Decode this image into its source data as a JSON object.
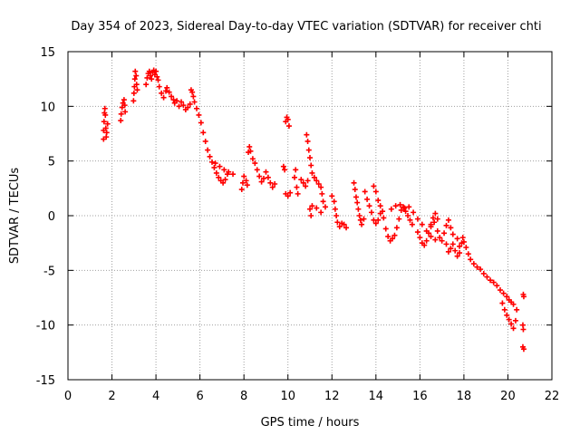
{
  "chart_data": {
    "type": "scatter",
    "title": "Day 354 of 2023, Sidereal Day-to-day VTEC variation (SDTVAR) for receiver chti",
    "xlabel": "GPS time / hours",
    "ylabel": "SDTVAR / TECUs",
    "xlim": [
      0,
      22
    ],
    "ylim": [
      -15,
      15
    ],
    "xticks": [
      0,
      2,
      4,
      6,
      8,
      10,
      12,
      14,
      16,
      18,
      20,
      22
    ],
    "yticks": [
      -15,
      -10,
      -5,
      0,
      5,
      10,
      15
    ],
    "grid": true,
    "marker": "+",
    "color": "#ff0000",
    "series": [
      {
        "name": "SDTVAR",
        "points": [
          [
            1.62,
            7.0
          ],
          [
            1.62,
            7.8
          ],
          [
            1.64,
            8.6
          ],
          [
            1.66,
            9.4
          ],
          [
            1.68,
            9.8
          ],
          [
            1.7,
            9.2
          ],
          [
            1.72,
            8.0
          ],
          [
            1.74,
            7.2
          ],
          [
            1.76,
            7.6
          ],
          [
            1.8,
            8.4
          ],
          [
            2.4,
            8.7
          ],
          [
            2.42,
            9.3
          ],
          [
            2.46,
            9.9
          ],
          [
            2.5,
            10.3
          ],
          [
            2.55,
            10.6
          ],
          [
            2.58,
            10.1
          ],
          [
            2.6,
            9.5
          ],
          [
            2.98,
            10.5
          ],
          [
            3.0,
            11.2
          ],
          [
            3.02,
            11.8
          ],
          [
            3.04,
            12.5
          ],
          [
            3.06,
            13.2
          ],
          [
            3.1,
            12.8
          ],
          [
            3.12,
            12.0
          ],
          [
            3.15,
            11.5
          ],
          [
            3.55,
            12.0
          ],
          [
            3.6,
            12.6
          ],
          [
            3.65,
            13.0
          ],
          [
            3.7,
            13.2
          ],
          [
            3.75,
            12.8
          ],
          [
            3.8,
            12.5
          ],
          [
            3.85,
            13.1
          ],
          [
            3.9,
            13.3
          ],
          [
            3.95,
            12.9
          ],
          [
            4.0,
            13.2
          ],
          [
            4.05,
            12.7
          ],
          [
            4.1,
            12.4
          ],
          [
            4.15,
            11.8
          ],
          [
            4.25,
            11.2
          ],
          [
            4.35,
            10.8
          ],
          [
            4.45,
            11.4
          ],
          [
            4.5,
            11.7
          ],
          [
            4.6,
            11.3
          ],
          [
            4.7,
            10.9
          ],
          [
            4.8,
            10.6
          ],
          [
            4.85,
            10.3
          ],
          [
            4.95,
            10.5
          ],
          [
            5.05,
            10.0
          ],
          [
            5.15,
            10.4
          ],
          [
            5.25,
            10.1
          ],
          [
            5.35,
            9.7
          ],
          [
            5.45,
            9.9
          ],
          [
            5.55,
            10.2
          ],
          [
            5.6,
            11.5
          ],
          [
            5.65,
            11.3
          ],
          [
            5.7,
            10.9
          ],
          [
            5.75,
            10.4
          ],
          [
            5.85,
            9.8
          ],
          [
            5.95,
            9.2
          ],
          [
            6.05,
            8.5
          ],
          [
            6.15,
            7.6
          ],
          [
            6.25,
            6.8
          ],
          [
            6.35,
            6.0
          ],
          [
            6.45,
            5.4
          ],
          [
            6.55,
            4.9
          ],
          [
            6.65,
            4.4
          ],
          [
            6.75,
            3.9
          ],
          [
            6.85,
            3.5
          ],
          [
            6.95,
            3.2
          ],
          [
            7.05,
            3.0
          ],
          [
            7.15,
            3.3
          ],
          [
            7.25,
            3.8
          ],
          [
            6.7,
            4.8
          ],
          [
            6.9,
            4.5
          ],
          [
            7.1,
            4.2
          ],
          [
            7.3,
            4.0
          ],
          [
            7.5,
            3.8
          ],
          [
            7.9,
            2.4
          ],
          [
            7.95,
            3.0
          ],
          [
            8.0,
            3.6
          ],
          [
            8.1,
            3.2
          ],
          [
            8.15,
            2.8
          ],
          [
            8.2,
            5.8
          ],
          [
            8.25,
            6.3
          ],
          [
            8.3,
            5.9
          ],
          [
            8.4,
            5.2
          ],
          [
            8.5,
            4.8
          ],
          [
            8.6,
            4.2
          ],
          [
            8.7,
            3.6
          ],
          [
            8.8,
            3.1
          ],
          [
            8.9,
            3.4
          ],
          [
            9.0,
            4.0
          ],
          [
            9.1,
            3.5
          ],
          [
            9.2,
            3.0
          ],
          [
            9.3,
            2.6
          ],
          [
            9.4,
            2.9
          ],
          [
            9.8,
            4.5
          ],
          [
            9.85,
            4.2
          ],
          [
            9.9,
            8.6
          ],
          [
            9.95,
            9.0
          ],
          [
            10.0,
            8.8
          ],
          [
            10.05,
            8.2
          ],
          [
            9.9,
            2.0
          ],
          [
            10.0,
            1.8
          ],
          [
            10.1,
            2.1
          ],
          [
            10.3,
            3.5
          ],
          [
            10.35,
            4.2
          ],
          [
            10.4,
            2.6
          ],
          [
            10.45,
            2.0
          ],
          [
            10.6,
            3.3
          ],
          [
            10.7,
            3.0
          ],
          [
            10.8,
            2.7
          ],
          [
            10.9,
            3.2
          ],
          [
            10.85,
            7.4
          ],
          [
            10.9,
            6.8
          ],
          [
            10.95,
            6.0
          ],
          [
            11.0,
            5.3
          ],
          [
            11.05,
            4.6
          ],
          [
            11.1,
            3.9
          ],
          [
            11.2,
            3.5
          ],
          [
            11.3,
            3.2
          ],
          [
            11.4,
            2.9
          ],
          [
            11.5,
            2.6
          ],
          [
            11.55,
            2.0
          ],
          [
            11.6,
            1.3
          ],
          [
            11.0,
            0.6
          ],
          [
            11.05,
            0.0
          ],
          [
            11.1,
            0.9
          ],
          [
            11.3,
            0.7
          ],
          [
            11.5,
            0.3
          ],
          [
            11.7,
            0.8
          ],
          [
            12.0,
            1.8
          ],
          [
            12.1,
            1.3
          ],
          [
            12.15,
            0.6
          ],
          [
            12.2,
            0.0
          ],
          [
            12.25,
            -0.6
          ],
          [
            12.35,
            -1.0
          ],
          [
            12.45,
            -0.7
          ],
          [
            12.55,
            -0.8
          ],
          [
            12.65,
            -1.1
          ],
          [
            13.0,
            3.0
          ],
          [
            13.05,
            2.4
          ],
          [
            13.1,
            1.7
          ],
          [
            13.15,
            1.2
          ],
          [
            13.2,
            0.6
          ],
          [
            13.25,
            0.0
          ],
          [
            13.3,
            -0.4
          ],
          [
            13.35,
            -0.8
          ],
          [
            13.45,
            -0.3
          ],
          [
            13.5,
            2.2
          ],
          [
            13.6,
            1.5
          ],
          [
            13.7,
            0.9
          ],
          [
            13.8,
            0.3
          ],
          [
            13.9,
            -0.4
          ],
          [
            14.0,
            -0.7
          ],
          [
            14.1,
            -0.4
          ],
          [
            14.2,
            0.2
          ],
          [
            13.9,
            2.7
          ],
          [
            14.0,
            2.2
          ],
          [
            14.1,
            1.4
          ],
          [
            14.2,
            0.9
          ],
          [
            14.3,
            0.4
          ],
          [
            14.35,
            -0.2
          ],
          [
            14.45,
            -1.2
          ],
          [
            14.55,
            -1.9
          ],
          [
            14.65,
            -2.3
          ],
          [
            14.75,
            -2.1
          ],
          [
            14.85,
            -1.8
          ],
          [
            14.95,
            -1.1
          ],
          [
            15.05,
            -0.3
          ],
          [
            15.15,
            0.5
          ],
          [
            15.25,
            0.8
          ],
          [
            15.35,
            0.4
          ],
          [
            15.45,
            0.0
          ],
          [
            15.55,
            -0.4
          ],
          [
            15.65,
            -0.8
          ],
          [
            14.7,
            0.6
          ],
          [
            14.9,
            0.9
          ],
          [
            15.1,
            1.0
          ],
          [
            15.3,
            0.7
          ],
          [
            15.5,
            0.8
          ],
          [
            15.7,
            0.3
          ],
          [
            15.9,
            -0.3
          ],
          [
            16.1,
            -0.8
          ],
          [
            16.3,
            -1.4
          ],
          [
            16.5,
            -1.9
          ],
          [
            16.7,
            -2.2
          ],
          [
            15.9,
            -1.5
          ],
          [
            16.0,
            -2.0
          ],
          [
            16.1,
            -2.5
          ],
          [
            16.2,
            -2.7
          ],
          [
            16.3,
            -2.3
          ],
          [
            16.4,
            -1.6
          ],
          [
            16.5,
            -0.8
          ],
          [
            16.6,
            -0.2
          ],
          [
            16.7,
            0.2
          ],
          [
            16.8,
            -0.3
          ],
          [
            16.5,
            -1.0
          ],
          [
            16.65,
            -0.6
          ],
          [
            16.8,
            -1.4
          ],
          [
            16.9,
            -2.0
          ],
          [
            17.0,
            -2.3
          ],
          [
            17.1,
            -1.6
          ],
          [
            17.2,
            -0.9
          ],
          [
            17.3,
            -0.4
          ],
          [
            17.4,
            -1.1
          ],
          [
            17.5,
            -1.7
          ],
          [
            17.2,
            -2.6
          ],
          [
            17.3,
            -3.3
          ],
          [
            17.4,
            -3.0
          ],
          [
            17.5,
            -2.6
          ],
          [
            17.6,
            -3.2
          ],
          [
            17.7,
            -3.7
          ],
          [
            17.8,
            -3.4
          ],
          [
            17.9,
            -2.5
          ],
          [
            17.95,
            -2.0
          ],
          [
            18.0,
            -2.4
          ],
          [
            17.7,
            -2.1
          ],
          [
            17.8,
            -2.8
          ],
          [
            18.1,
            -2.9
          ],
          [
            18.2,
            -3.5
          ],
          [
            18.3,
            -4.0
          ],
          [
            18.45,
            -4.4
          ],
          [
            18.6,
            -4.7
          ],
          [
            18.75,
            -4.9
          ],
          [
            18.9,
            -5.3
          ],
          [
            19.05,
            -5.6
          ],
          [
            19.2,
            -5.9
          ],
          [
            19.35,
            -6.1
          ],
          [
            19.5,
            -6.4
          ],
          [
            19.65,
            -6.8
          ],
          [
            19.8,
            -7.1
          ],
          [
            19.95,
            -7.4
          ],
          [
            20.05,
            -7.7
          ],
          [
            20.15,
            -7.9
          ],
          [
            20.25,
            -8.1
          ],
          [
            19.75,
            -8.0
          ],
          [
            19.85,
            -8.6
          ],
          [
            19.95,
            -9.1
          ],
          [
            20.05,
            -9.5
          ],
          [
            20.15,
            -9.9
          ],
          [
            20.25,
            -10.3
          ],
          [
            20.35,
            -9.6
          ],
          [
            20.4,
            -8.6
          ],
          [
            20.7,
            -7.2
          ],
          [
            20.72,
            -7.4
          ],
          [
            20.68,
            -10.0
          ],
          [
            20.7,
            -10.4
          ],
          [
            20.72,
            -12.2
          ],
          [
            20.68,
            -12.0
          ]
        ]
      }
    ]
  }
}
